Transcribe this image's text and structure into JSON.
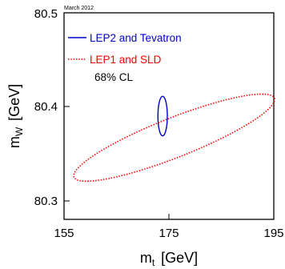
{
  "chart_data": {
    "type": "scatter",
    "note": "March 2012",
    "xlabel": {
      "main": "m",
      "sub": "t",
      "unit": "[GeV]"
    },
    "ylabel": {
      "main": "m",
      "sub": "W",
      "unit": "[GeV]"
    },
    "xlim": [
      155,
      195
    ],
    "ylim": [
      80.27,
      80.5
    ],
    "x_ticks": [
      "155",
      "175",
      "195"
    ],
    "y_ticks": [
      "80.3",
      "80.4",
      "80.5"
    ],
    "grid": false,
    "legend_position": "top-left",
    "legend_extra": "68% CL",
    "series": [
      {
        "name": "LEP2 and Tevatron",
        "color": "#0000cc",
        "style": "solid",
        "shape": "ellipse",
        "center": [
          173.8,
          80.385
        ],
        "axes": [
          0.9,
          0.022
        ],
        "angle_deg": 0
      },
      {
        "name": "LEP1 and SLD",
        "color": "#ff0000",
        "style": "dotted",
        "shape": "ellipse",
        "center": [
          176.0,
          80.361
        ],
        "major_end": [
          156.9,
          80.317
        ],
        "minor_radius": 0.022
      }
    ]
  }
}
